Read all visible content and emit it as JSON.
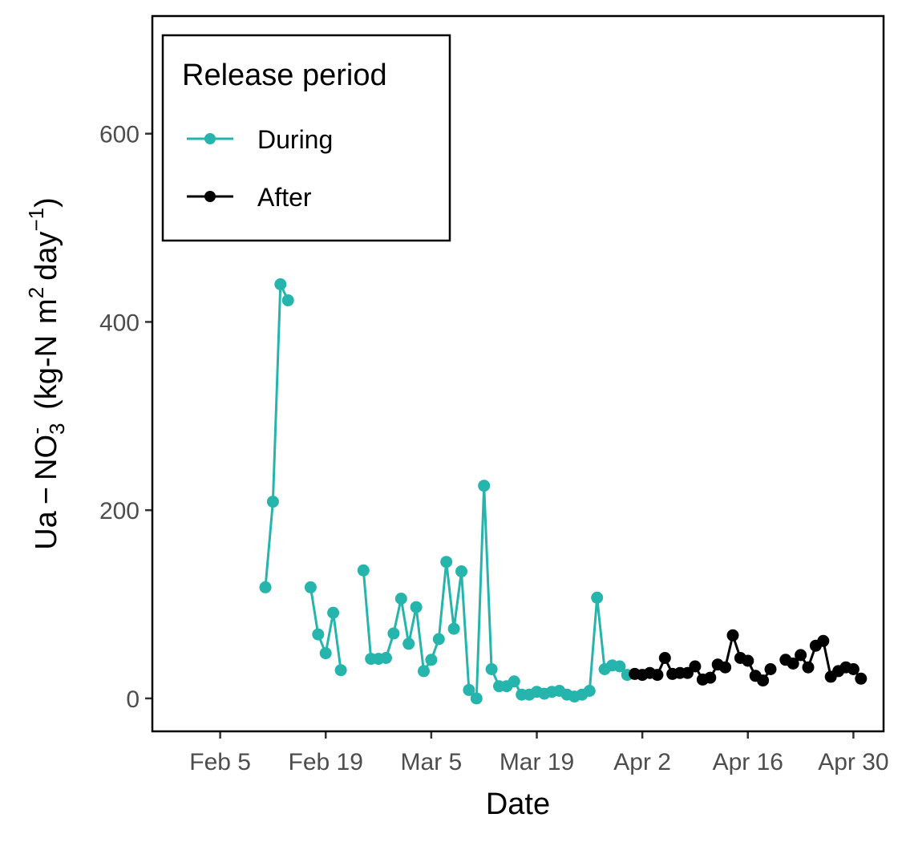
{
  "chart_data": {
    "type": "line",
    "xlabel": "Date",
    "ylabel": {
      "prefix": "Ua",
      "minus": "−",
      "species_base": "NO",
      "species_sub": "3",
      "species_sup": "-",
      "unit_open": "(kg-N",
      "unit_m": "m",
      "unit_m_sup": "2",
      "unit_day": "day",
      "unit_day_sup": "−1",
      "unit_close": ")"
    },
    "x_domain": [
      "2018-01-27",
      "2018-05-04"
    ],
    "ylim": [
      -35,
      725
    ],
    "x_ticks": [
      {
        "date": "2018-02-05",
        "label": "Feb  5"
      },
      {
        "date": "2018-02-19",
        "label": "Feb 19"
      },
      {
        "date": "2018-03-05",
        "label": "Mar  5"
      },
      {
        "date": "2018-03-19",
        "label": "Mar 19"
      },
      {
        "date": "2018-04-02",
        "label": "Apr  2"
      },
      {
        "date": "2018-04-16",
        "label": "Apr 16"
      },
      {
        "date": "2018-04-30",
        "label": "Apr 30"
      }
    ],
    "y_ticks": [
      0,
      200,
      400,
      600
    ],
    "grid": false,
    "legend": {
      "title": "Release period",
      "position": "top-left"
    },
    "series": [
      {
        "name": "During",
        "color": "#26b5ac",
        "segments": [
          [
            {
              "date": "2018-02-11",
              "y": 118
            },
            {
              "date": "2018-02-12",
              "y": 209
            },
            {
              "date": "2018-02-13",
              "y": 440
            },
            {
              "date": "2018-02-14",
              "y": 423
            }
          ],
          [
            {
              "date": "2018-02-17",
              "y": 118
            },
            {
              "date": "2018-02-18",
              "y": 68
            },
            {
              "date": "2018-02-19",
              "y": 48
            },
            {
              "date": "2018-02-20",
              "y": 91
            },
            {
              "date": "2018-02-21",
              "y": 30
            }
          ],
          [
            {
              "date": "2018-02-24",
              "y": 136
            },
            {
              "date": "2018-02-25",
              "y": 42
            },
            {
              "date": "2018-02-26",
              "y": 42
            },
            {
              "date": "2018-02-27",
              "y": 43
            },
            {
              "date": "2018-02-28",
              "y": 69
            },
            {
              "date": "2018-03-01",
              "y": 106
            },
            {
              "date": "2018-03-02",
              "y": 58
            },
            {
              "date": "2018-03-03",
              "y": 97
            },
            {
              "date": "2018-03-04",
              "y": 29
            },
            {
              "date": "2018-03-05",
              "y": 41
            },
            {
              "date": "2018-03-06",
              "y": 63
            },
            {
              "date": "2018-03-07",
              "y": 145
            },
            {
              "date": "2018-03-08",
              "y": 74
            },
            {
              "date": "2018-03-09",
              "y": 135
            },
            {
              "date": "2018-03-10",
              "y": 9
            },
            {
              "date": "2018-03-11",
              "y": 0
            },
            {
              "date": "2018-03-12",
              "y": 226
            },
            {
              "date": "2018-03-13",
              "y": 31
            },
            {
              "date": "2018-03-14",
              "y": 13
            },
            {
              "date": "2018-03-15",
              "y": 13
            },
            {
              "date": "2018-03-16",
              "y": 18
            },
            {
              "date": "2018-03-17",
              "y": 4
            },
            {
              "date": "2018-03-18",
              "y": 4
            },
            {
              "date": "2018-03-19",
              "y": 7
            },
            {
              "date": "2018-03-20",
              "y": 5
            },
            {
              "date": "2018-03-21",
              "y": 7
            },
            {
              "date": "2018-03-22",
              "y": 8
            },
            {
              "date": "2018-03-23",
              "y": 4
            },
            {
              "date": "2018-03-24",
              "y": 2
            },
            {
              "date": "2018-03-25",
              "y": 4
            },
            {
              "date": "2018-03-26",
              "y": 8
            },
            {
              "date": "2018-03-27",
              "y": 107
            },
            {
              "date": "2018-03-28",
              "y": 31
            },
            {
              "date": "2018-03-29",
              "y": 35
            },
            {
              "date": "2018-03-30",
              "y": 34
            },
            {
              "date": "2018-03-31",
              "y": 25
            }
          ]
        ]
      },
      {
        "name": "After",
        "color": "#000000",
        "segments": [
          [
            {
              "date": "2018-04-01",
              "y": 26
            },
            {
              "date": "2018-04-02",
              "y": 25
            },
            {
              "date": "2018-04-03",
              "y": 27
            },
            {
              "date": "2018-04-04",
              "y": 25
            },
            {
              "date": "2018-04-05",
              "y": 43
            },
            {
              "date": "2018-04-06",
              "y": 26
            },
            {
              "date": "2018-04-07",
              "y": 27
            },
            {
              "date": "2018-04-08",
              "y": 27
            },
            {
              "date": "2018-04-09",
              "y": 34
            },
            {
              "date": "2018-04-10",
              "y": 20
            },
            {
              "date": "2018-04-11",
              "y": 22
            },
            {
              "date": "2018-04-12",
              "y": 36
            },
            {
              "date": "2018-04-13",
              "y": 33
            },
            {
              "date": "2018-04-14",
              "y": 67
            },
            {
              "date": "2018-04-15",
              "y": 43
            },
            {
              "date": "2018-04-16",
              "y": 40
            },
            {
              "date": "2018-04-17",
              "y": 24
            },
            {
              "date": "2018-04-18",
              "y": 19
            },
            {
              "date": "2018-04-19",
              "y": 31
            }
          ],
          [
            {
              "date": "2018-04-21",
              "y": 41
            },
            {
              "date": "2018-04-22",
              "y": 37
            },
            {
              "date": "2018-04-23",
              "y": 46
            },
            {
              "date": "2018-04-24",
              "y": 33
            },
            {
              "date": "2018-04-25",
              "y": 56
            },
            {
              "date": "2018-04-26",
              "y": 61
            },
            {
              "date": "2018-04-27",
              "y": 23
            },
            {
              "date": "2018-04-28",
              "y": 29
            },
            {
              "date": "2018-04-29",
              "y": 33
            },
            {
              "date": "2018-04-30",
              "y": 31
            },
            {
              "date": "2018-05-01",
              "y": 21
            }
          ]
        ]
      }
    ]
  }
}
